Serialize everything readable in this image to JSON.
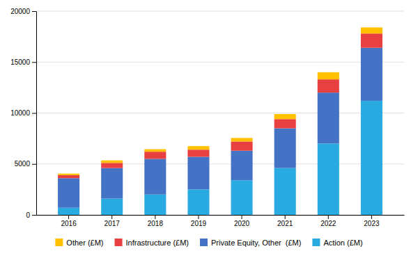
{
  "chart_data": {
    "type": "bar",
    "stacked": true,
    "categories": [
      "2016",
      "2017",
      "2018",
      "2019",
      "2020",
      "2021",
      "2022",
      "2023"
    ],
    "series": [
      {
        "name": "Action (£M)",
        "color": "#29ABE2",
        "values": [
          700,
          1600,
          2000,
          2500,
          3400,
          4600,
          7000,
          11200
        ]
      },
      {
        "name": "Private Equity, Other  (£M)",
        "color": "#4472C4",
        "values": [
          2900,
          3000,
          3500,
          3200,
          2900,
          3900,
          5000,
          5200
        ]
      },
      {
        "name": "Infrastructure (£M)",
        "color": "#E84040",
        "values": [
          300,
          500,
          700,
          700,
          900,
          900,
          1300,
          1400
        ]
      },
      {
        "name": "Other (£M)",
        "color": "#FFC000",
        "values": [
          150,
          250,
          250,
          350,
          350,
          500,
          700,
          600
        ]
      }
    ],
    "ylim": [
      0,
      20000
    ],
    "yticks": [
      0,
      5000,
      10000,
      15000,
      20000
    ],
    "grid": true,
    "legend": "bottom"
  }
}
